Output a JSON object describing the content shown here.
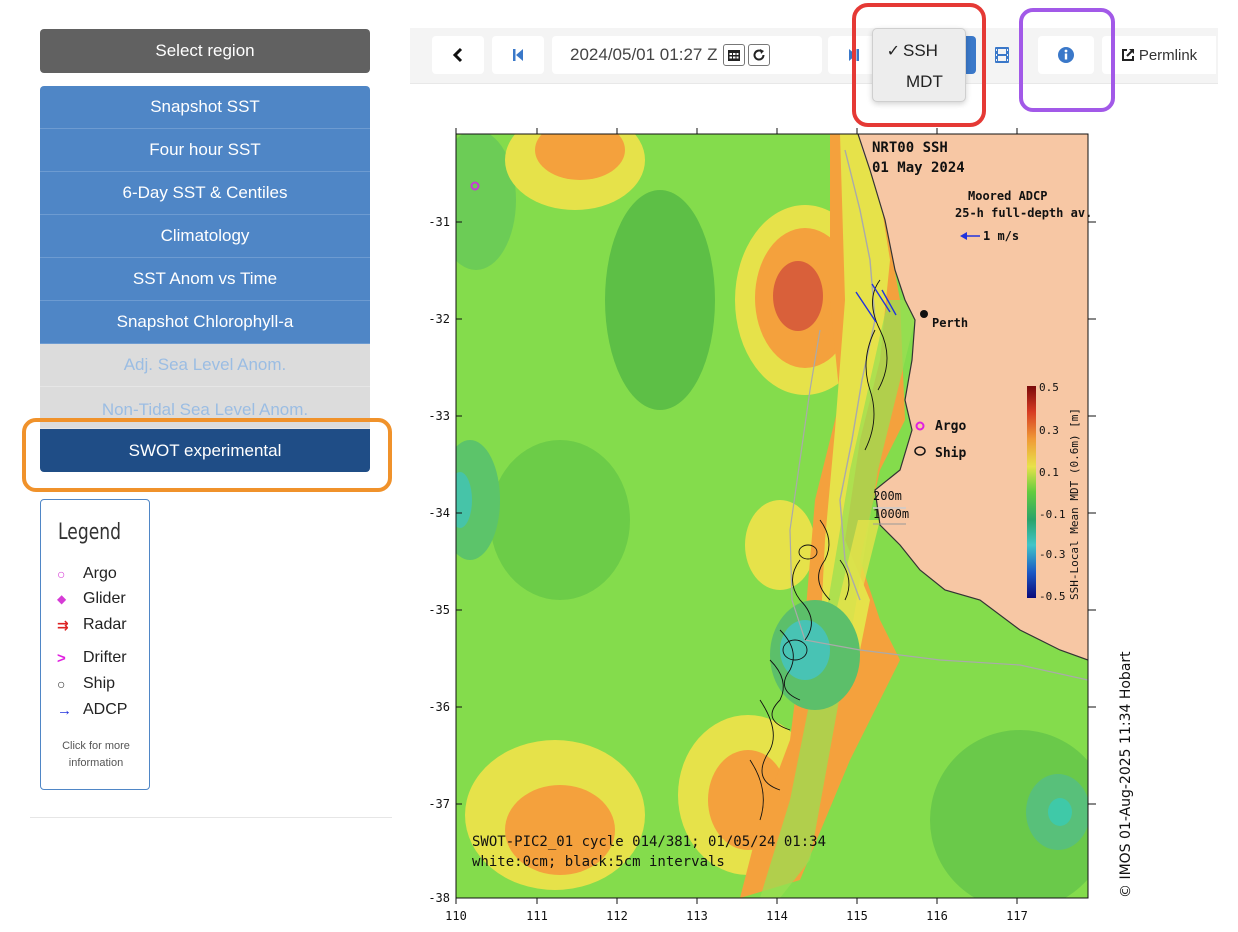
{
  "sidebar": {
    "select_region": "Select region",
    "menu": [
      {
        "label": "Snapshot SST"
      },
      {
        "label": "Four hour SST"
      },
      {
        "label": "6-Day SST & Centiles"
      },
      {
        "label": "Climatology"
      },
      {
        "label": "SST Anom vs Time"
      },
      {
        "label": "Snapshot Chlorophyll-a"
      },
      {
        "label": "Adj. Sea Level Anom."
      },
      {
        "label": "Non-Tidal Sea Level Anom."
      },
      {
        "label": "SWOT experimental"
      }
    ],
    "legend": {
      "title": "Legend",
      "items": [
        {
          "symbol": "○",
          "label": "Argo"
        },
        {
          "symbol": "◆",
          "label": "Glider"
        },
        {
          "symbol": "⇉",
          "label": "Radar"
        },
        {
          "symbol": ">",
          "label": "Drifter"
        },
        {
          "symbol": "○",
          "label": "Ship"
        },
        {
          "symbol": "→",
          "label": "ADCP"
        }
      ],
      "note": "Click for more information"
    }
  },
  "toolbar": {
    "date": "2024/05/01 01:27 Z",
    "permalink": "Permlink",
    "dropdown": [
      {
        "label": "SSH",
        "checked": true
      },
      {
        "label": "MDT",
        "checked": false
      }
    ]
  },
  "map": {
    "title": "NRT00 SSH",
    "date": "01 May 2024",
    "moored_line1": "Moored ADCP",
    "moored_line2": "25-h full-depth av.",
    "scale_arrow": "1 m/s",
    "perth": "Perth",
    "argo": "Argo",
    "ship": "Ship",
    "contour_200": "200m",
    "contour_1000": "1000m",
    "swot_line1": "SWOT-PIC2_01 cycle 014/381; 01/05/24 01:34",
    "swot_line2": "white:0cm; black:5cm intervals",
    "credit": "© IMOS 01-Aug-2025 11:34 Hobart",
    "colorbar_title": "SSH-Local Mean MDT (0.6m) [m]",
    "colorbar_ticks": [
      "0.5",
      "0.3",
      "0.1",
      "-0.1",
      "-0.3",
      "-0.5"
    ],
    "y_ticks": [
      "-31",
      "-32",
      "-33",
      "-34",
      "-35",
      "-36",
      "-37",
      "-38"
    ],
    "x_ticks": [
      "110",
      "111",
      "112",
      "113",
      "114",
      "115",
      "116",
      "117"
    ],
    "colors": {
      "land": "#f7c7a4",
      "sea_green": "#7fd94a",
      "deep_green": "#56b848",
      "orange": "#f4a13d",
      "red": "#d8553a",
      "yellow": "#e6e24a",
      "cyan": "#3fc9c6"
    }
  }
}
